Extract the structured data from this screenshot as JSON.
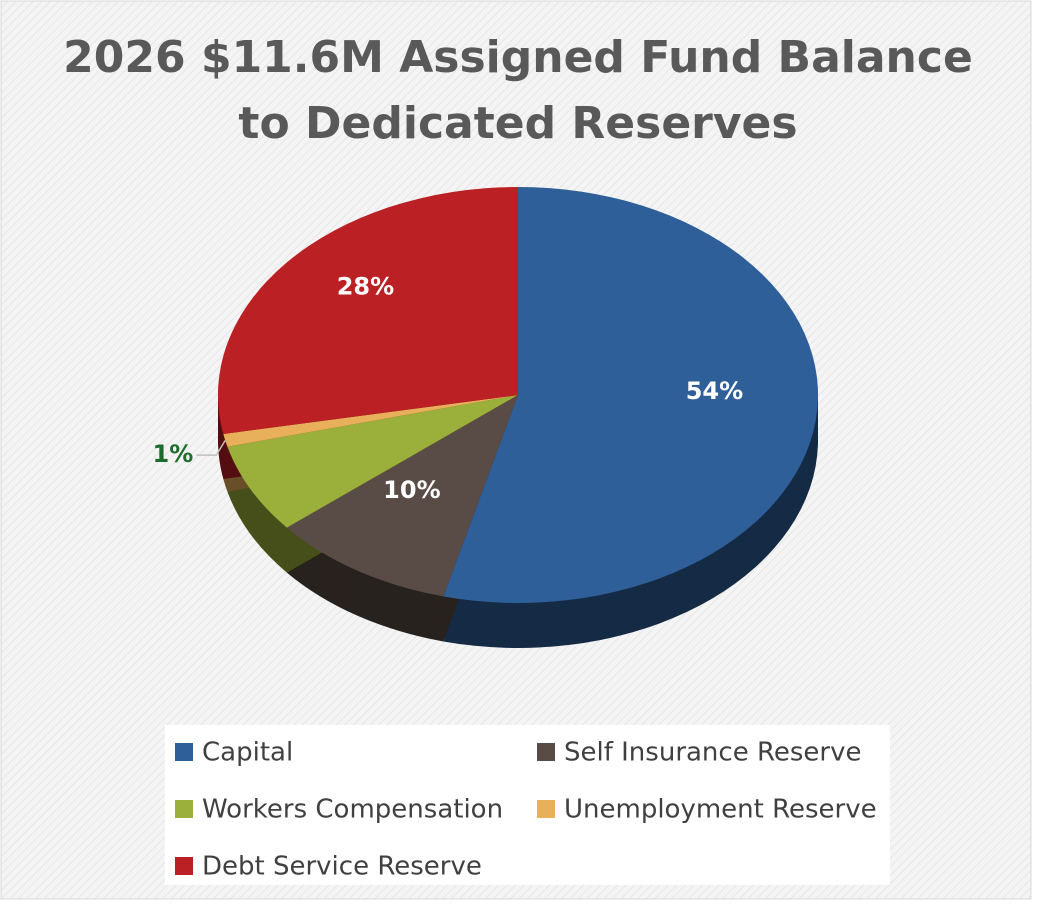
{
  "chart_data": {
    "type": "pie",
    "title": "2026 $11.6M Assigned Fund Balance to Dedicated Reserves",
    "categories": [
      "Capital",
      "Self Insurance Reserve",
      "Workers Compensation",
      "Unemployment Reserve",
      "Debt Service Reserve"
    ],
    "values": [
      54,
      10,
      7,
      1,
      28
    ],
    "value_labels": [
      "54%",
      "10%",
      null,
      "1%",
      "28%"
    ],
    "colors": [
      "#2e5f99",
      "#594b45",
      "#9bb03a",
      "#e8b05a",
      "#bb2025"
    ],
    "legend": "bottom"
  }
}
